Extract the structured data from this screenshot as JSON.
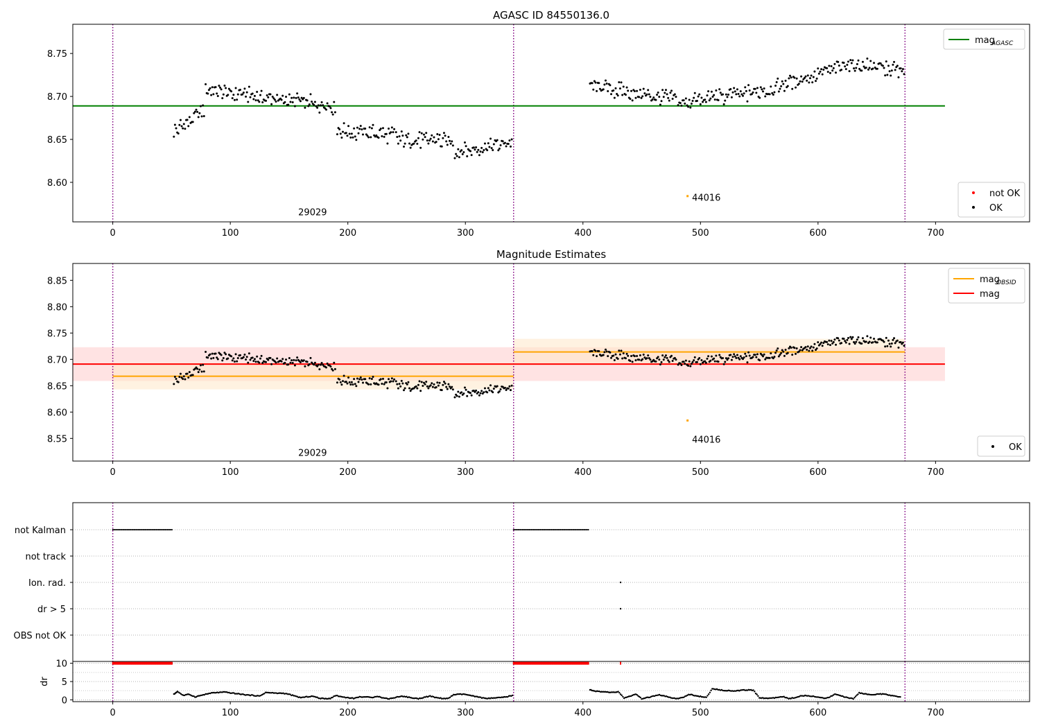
{
  "figure": {
    "background": "#ffffff"
  },
  "chart_data": [
    {
      "type": "scatter",
      "title": "AGASC ID 84550136.0",
      "xlim": [
        -34,
        780
      ],
      "ylim": [
        8.554,
        8.784
      ],
      "xticks": [
        0,
        100,
        200,
        300,
        400,
        500,
        600,
        700
      ],
      "xtick_labels": [
        "0",
        "100",
        "200",
        "300",
        "400",
        "500",
        "600",
        "700"
      ],
      "yticks": [
        8.6,
        8.65,
        8.7,
        8.75
      ],
      "ytick_labels": [
        "8.60",
        "8.65",
        "8.70",
        "8.75"
      ],
      "vlines": [
        0,
        341,
        674
      ],
      "vline_color": "#800080",
      "hlines": [
        {
          "label": "mag_AGASC",
          "y": 8.689,
          "x": [
            -34,
            708
          ],
          "color": "#008000"
        }
      ],
      "annotations": [
        {
          "text": "29029",
          "x": 170,
          "y": 8.5615
        },
        {
          "text": "44016",
          "x": 505,
          "y": 8.5785
        }
      ],
      "special_points": [
        {
          "x": 489,
          "y": 8.584,
          "color": "#ffa500"
        }
      ],
      "series": [
        {
          "name": "not OK",
          "color": "#ff0000",
          "segments": []
        },
        {
          "name": "OK",
          "color": "#000000",
          "segments": [
            {
              "x0": 52,
              "x1": 78,
              "y0": 8.66,
              "y1": 8.683
            },
            {
              "x0": 79,
              "x1": 190,
              "y0": 8.708,
              "y1": 8.688
            },
            {
              "x0": 191,
              "x1": 240,
              "y0": 8.66,
              "y1": 8.655
            },
            {
              "x0": 241,
              "x1": 290,
              "y0": 8.65,
              "y1": 8.648
            },
            {
              "x0": 291,
              "x1": 340,
              "y0": 8.635,
              "y1": 8.647
            },
            {
              "x0": 406,
              "x1": 480,
              "y0": 8.712,
              "y1": 8.697
            },
            {
              "x0": 481,
              "x1": 560,
              "y0": 8.692,
              "y1": 8.708
            },
            {
              "x0": 561,
              "x1": 620,
              "y0": 8.71,
              "y1": 8.735
            },
            {
              "x0": 621,
              "x1": 674,
              "y0": 8.738,
              "y1": 8.73
            }
          ]
        }
      ],
      "legends": [
        {
          "position": "top-right",
          "entries": [
            {
              "label": "mag",
              "sub": "AGASC",
              "kind": "line",
              "color": "#008000"
            }
          ]
        },
        {
          "position": "bottom-right",
          "entries": [
            {
              "label": "not OK",
              "kind": "dot",
              "color": "#ff0000"
            },
            {
              "label": "OK",
              "kind": "dot",
              "color": "#000000"
            }
          ]
        }
      ]
    },
    {
      "type": "scatter",
      "title": "Magnitude Estimates",
      "xlim": [
        -34,
        780
      ],
      "ylim": [
        8.507,
        8.882
      ],
      "xticks": [
        0,
        100,
        200,
        300,
        400,
        500,
        600,
        700
      ],
      "xtick_labels": [
        "0",
        "100",
        "200",
        "300",
        "400",
        "500",
        "600",
        "700"
      ],
      "yticks": [
        8.55,
        8.6,
        8.65,
        8.7,
        8.75,
        8.8,
        8.85
      ],
      "ytick_labels": [
        "8.55",
        "8.60",
        "8.65",
        "8.70",
        "8.75",
        "8.80",
        "8.85"
      ],
      "vlines": [
        0,
        341,
        674
      ],
      "vline_color": "#800080",
      "bands": [
        {
          "x": [
            -34,
            708
          ],
          "y": [
            8.659,
            8.723
          ],
          "color": "#ffcccc"
        },
        {
          "x": [
            0,
            341
          ],
          "y": [
            8.643,
            8.693
          ],
          "color": "#ffe8c8"
        },
        {
          "x": [
            341,
            674
          ],
          "y": [
            8.689,
            8.739
          ],
          "color": "#ffe8c8"
        }
      ],
      "hlines": [
        {
          "label": "mag_OBSID",
          "y": 8.668,
          "x": [
            0,
            341
          ],
          "color": "#ffa500"
        },
        {
          "label": "mag_OBSID",
          "y": 8.714,
          "x": [
            341,
            674
          ],
          "color": "#ffa500"
        },
        {
          "label": "mag",
          "y": 8.691,
          "x": [
            -34,
            708
          ],
          "color": "#ff0000"
        }
      ],
      "annotations": [
        {
          "text": "29029",
          "x": 170,
          "y": 8.517
        },
        {
          "text": "44016",
          "x": 505,
          "y": 8.542
        }
      ],
      "special_points": [
        {
          "x": 489,
          "y": 8.584,
          "color": "#ffa500"
        }
      ],
      "series": [
        {
          "name": "OK",
          "color": "#000000",
          "segments": [
            {
              "x0": 52,
              "x1": 78,
              "y0": 8.66,
              "y1": 8.683
            },
            {
              "x0": 79,
              "x1": 190,
              "y0": 8.708,
              "y1": 8.688
            },
            {
              "x0": 191,
              "x1": 240,
              "y0": 8.66,
              "y1": 8.655
            },
            {
              "x0": 241,
              "x1": 290,
              "y0": 8.65,
              "y1": 8.648
            },
            {
              "x0": 291,
              "x1": 340,
              "y0": 8.635,
              "y1": 8.647
            },
            {
              "x0": 406,
              "x1": 480,
              "y0": 8.712,
              "y1": 8.697
            },
            {
              "x0": 481,
              "x1": 560,
              "y0": 8.692,
              "y1": 8.708
            },
            {
              "x0": 561,
              "x1": 620,
              "y0": 8.71,
              "y1": 8.735
            },
            {
              "x0": 621,
              "x1": 674,
              "y0": 8.738,
              "y1": 8.73
            }
          ]
        }
      ],
      "legends": [
        {
          "position": "top-right",
          "entries": [
            {
              "label": "mag",
              "sub": "OBSID",
              "kind": "line",
              "color": "#ffa500"
            },
            {
              "label": "mag",
              "sub": "",
              "kind": "line",
              "color": "#ff0000"
            }
          ]
        },
        {
          "position": "bottom-right",
          "entries": [
            {
              "label": "OK",
              "kind": "dot",
              "color": "#000000"
            }
          ]
        }
      ]
    },
    {
      "type": "scatter",
      "xlim": [
        -34,
        780
      ],
      "categories": [
        "not Kalman",
        "not track",
        "Ion. rad.",
        "dr > 5",
        "OBS not OK"
      ],
      "vlines": [
        0,
        341,
        674
      ],
      "vline_color": "#800080",
      "flags": [
        {
          "category": "not Kalman",
          "ranges": [
            [
              0,
              51
            ],
            [
              341,
              405
            ]
          ],
          "color": "#000000"
        },
        {
          "category": "Ion. rad.",
          "points": [
            432
          ],
          "color": "#000000"
        },
        {
          "category": "dr > 5",
          "points": [
            432
          ],
          "color": "#000000"
        }
      ]
    },
    {
      "type": "scatter",
      "ylabel": "dr",
      "xlim": [
        -34,
        780
      ],
      "ylim": [
        -0.5,
        10.5
      ],
      "yticks": [
        0,
        5,
        10
      ],
      "ytick_labels": [
        "0",
        "5",
        "10"
      ],
      "xticks": [
        0,
        100,
        200,
        300,
        400,
        500,
        600,
        700
      ],
      "xtick_labels": [
        "0",
        "100",
        "200",
        "300",
        "400",
        "500",
        "600",
        "700"
      ],
      "vlines": [
        0,
        341,
        674
      ],
      "vline_color": "#800080",
      "capped": {
        "y": 10,
        "ranges": [
          [
            0,
            51
          ],
          [
            341,
            405
          ]
        ],
        "points": [
          432
        ],
        "color": "#ff0000"
      },
      "dr_x": [
        52,
        55,
        60,
        65,
        70,
        75,
        80,
        85,
        90,
        95,
        100,
        105,
        110,
        115,
        120,
        125,
        130,
        135,
        140,
        145,
        150,
        155,
        160,
        165,
        170,
        175,
        180,
        185,
        190,
        195,
        200,
        205,
        210,
        215,
        220,
        225,
        230,
        235,
        240,
        245,
        250,
        255,
        260,
        265,
        270,
        275,
        280,
        285,
        290,
        295,
        300,
        305,
        310,
        315,
        320,
        325,
        330,
        335,
        340,
        406,
        410,
        415,
        420,
        425,
        430,
        435,
        440,
        445,
        450,
        455,
        460,
        465,
        470,
        475,
        480,
        485,
        490,
        495,
        500,
        505,
        510,
        515,
        520,
        525,
        530,
        535,
        540,
        545,
        550,
        555,
        560,
        565,
        570,
        575,
        580,
        585,
        590,
        595,
        600,
        605,
        610,
        615,
        620,
        625,
        630,
        635,
        640,
        645,
        650,
        655,
        660,
        665,
        670
      ],
      "dr_y": [
        1.5,
        2.3,
        1.2,
        1.5,
        0.8,
        1.2,
        1.6,
        1.9,
        2.0,
        2.1,
        1.9,
        1.7,
        1.5,
        1.3,
        1.2,
        1.0,
        2.0,
        1.9,
        1.8,
        1.8,
        1.5,
        1.0,
        0.6,
        0.8,
        1.0,
        0.5,
        0.3,
        0.4,
        1.2,
        0.8,
        0.6,
        0.4,
        0.8,
        0.8,
        0.6,
        1.0,
        0.5,
        0.3,
        0.6,
        1.0,
        0.8,
        0.5,
        0.3,
        0.7,
        1.0,
        0.6,
        0.4,
        0.3,
        1.4,
        1.5,
        1.5,
        1.1,
        0.8,
        0.5,
        0.4,
        0.5,
        0.6,
        0.8,
        1.2,
        2.8,
        2.4,
        2.2,
        2.1,
        2.0,
        2.2,
        0.5,
        1.0,
        1.5,
        0.3,
        0.6,
        1.0,
        1.3,
        1.0,
        0.5,
        0.3,
        0.6,
        1.5,
        1.2,
        0.9,
        0.6,
        3.0,
        2.8,
        2.6,
        2.5,
        2.4,
        2.6,
        2.7,
        2.6,
        0.6,
        0.4,
        0.5,
        0.6,
        0.9,
        0.3,
        0.6,
        1.0,
        1.2,
        1.0,
        0.7,
        0.4,
        0.8,
        1.6,
        1.0,
        0.6,
        0.3,
        1.9,
        1.6,
        1.4,
        1.5,
        1.6,
        1.3,
        1.0,
        0.8
      ]
    }
  ]
}
